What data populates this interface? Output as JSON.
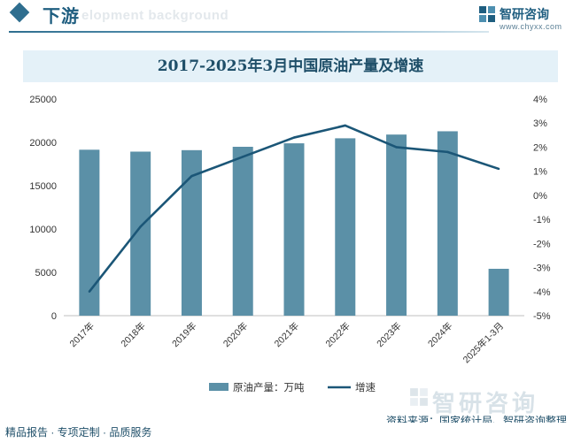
{
  "header": {
    "section_title": "下游",
    "section_subtitle": "elopment background",
    "brand_name": "智研咨询",
    "brand_url": "www.chyxx.com"
  },
  "chart_data": {
    "type": "bar",
    "title": "2017-2025年3月中国原油产量及增速",
    "categories": [
      "2017年",
      "2018年",
      "2019年",
      "2020年",
      "2021年",
      "2022年",
      "2023年",
      "2024年",
      "2025年1-3月"
    ],
    "series": [
      {
        "name": "原油产量：万吨",
        "type": "bar",
        "axis": "left",
        "color": "#5b90a7",
        "values": [
          19150,
          18930,
          19100,
          19490,
          19890,
          20470,
          20900,
          21280,
          5410
        ]
      },
      {
        "name": "增速",
        "type": "line",
        "axis": "right",
        "color": "#1b5677",
        "values": [
          -4.0,
          -1.3,
          0.8,
          1.6,
          2.4,
          2.9,
          2.0,
          1.8,
          1.1
        ]
      }
    ],
    "y_left": {
      "min": 0,
      "max": 25000,
      "ticks": [
        0,
        5000,
        10000,
        15000,
        20000,
        25000
      ]
    },
    "y_right": {
      "min": -5,
      "max": 4,
      "ticks": [
        "-5%",
        "-4%",
        "-3%",
        "-2%",
        "-1%",
        "0%",
        "1%",
        "2%",
        "3%",
        "4%"
      ]
    },
    "legend_position": "bottom-center",
    "grid": false
  },
  "footer": {
    "left_text": "精品报告 · 专项定制 · 品质服务",
    "source": "资料来源：国家统计局、智研咨询整理",
    "watermark": "智研咨询"
  }
}
